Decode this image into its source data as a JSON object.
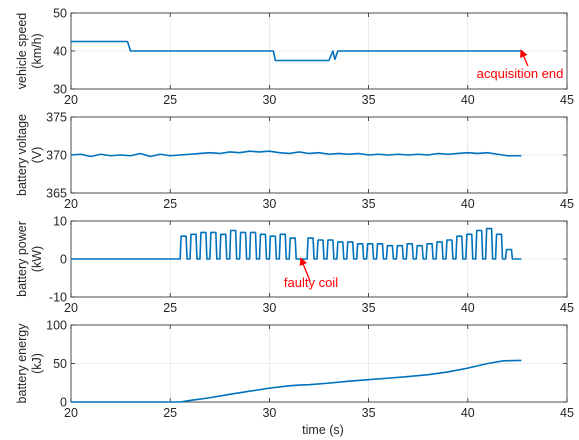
{
  "colors": {
    "series": "#0072bd",
    "annotation": "#ff0000",
    "axis": "#262626",
    "grid": "#dcdcdc"
  },
  "xlabel": "time (s)",
  "chart_data": [
    {
      "type": "line",
      "id": "speed",
      "ylabel": [
        "vehicle speed",
        "(km/h)"
      ],
      "xlim": [
        20,
        45
      ],
      "ylim": [
        30,
        50
      ],
      "xticks": [
        20,
        25,
        30,
        35,
        40,
        45
      ],
      "yticks": [
        30,
        40,
        50
      ],
      "grid": true,
      "series": [
        {
          "values": [
            [
              20.0,
              42.5
            ],
            [
              22.85,
              42.5
            ],
            [
              23.0,
              40.0
            ],
            [
              30.2,
              40.0
            ],
            [
              30.3,
              37.5
            ],
            [
              33.0,
              37.5
            ],
            [
              33.2,
              40.0
            ],
            [
              33.3,
              37.8
            ],
            [
              33.45,
              40.0
            ],
            [
              42.7,
              40.0
            ]
          ]
        }
      ],
      "annotations": [
        {
          "text": "acquisition end",
          "target": [
            42.7,
            40.0
          ]
        }
      ]
    },
    {
      "type": "line",
      "id": "voltage",
      "ylabel": [
        "battery voltage",
        "(V)"
      ],
      "xlim": [
        20,
        45
      ],
      "ylim": [
        365,
        375
      ],
      "xticks": [
        20,
        25,
        30,
        35,
        40,
        45
      ],
      "yticks": [
        365,
        370,
        375
      ],
      "grid": true,
      "series": [
        {
          "values": [
            [
              20.0,
              370.0
            ],
            [
              20.5,
              370.1
            ],
            [
              21.0,
              369.8
            ],
            [
              21.5,
              370.1
            ],
            [
              22.0,
              369.9
            ],
            [
              22.5,
              370.0
            ],
            [
              23.0,
              369.9
            ],
            [
              23.5,
              370.2
            ],
            [
              24.0,
              369.8
            ],
            [
              24.5,
              370.1
            ],
            [
              25.0,
              369.9
            ],
            [
              25.5,
              370.0
            ],
            [
              26.0,
              370.1
            ],
            [
              26.5,
              370.2
            ],
            [
              27.0,
              370.3
            ],
            [
              27.5,
              370.2
            ],
            [
              28.0,
              370.4
            ],
            [
              28.5,
              370.3
            ],
            [
              29.0,
              370.5
            ],
            [
              29.5,
              370.4
            ],
            [
              30.0,
              370.5
            ],
            [
              30.5,
              370.3
            ],
            [
              31.0,
              370.2
            ],
            [
              31.5,
              370.4
            ],
            [
              32.0,
              370.2
            ],
            [
              32.5,
              370.3
            ],
            [
              33.0,
              370.1
            ],
            [
              33.5,
              370.2
            ],
            [
              34.0,
              370.1
            ],
            [
              34.5,
              370.2
            ],
            [
              35.0,
              370.0
            ],
            [
              35.5,
              370.1
            ],
            [
              36.0,
              370.0
            ],
            [
              36.5,
              370.1
            ],
            [
              37.0,
              370.0
            ],
            [
              37.5,
              370.1
            ],
            [
              38.0,
              370.0
            ],
            [
              38.5,
              370.2
            ],
            [
              39.0,
              370.1
            ],
            [
              39.5,
              370.2
            ],
            [
              40.0,
              370.3
            ],
            [
              40.5,
              370.2
            ],
            [
              41.0,
              370.3
            ],
            [
              41.5,
              370.1
            ],
            [
              42.0,
              369.9
            ],
            [
              42.7,
              369.9
            ]
          ]
        }
      ]
    },
    {
      "type": "line",
      "id": "power",
      "ylabel": [
        "battery power",
        "(kW)"
      ],
      "xlim": [
        20,
        45
      ],
      "ylim": [
        -10,
        10
      ],
      "xticks": [
        20,
        25,
        30,
        35,
        40,
        45
      ],
      "yticks": [
        -10,
        0,
        10
      ],
      "grid": true,
      "series": [
        {
          "values": [
            [
              20.0,
              0.0
            ],
            [
              25.5,
              0.0
            ],
            [
              25.55,
              6.0
            ],
            [
              25.8,
              6.0
            ],
            [
              25.85,
              0.0
            ],
            [
              26.0,
              0.0
            ],
            [
              26.05,
              6.5
            ],
            [
              26.3,
              6.5
            ],
            [
              26.35,
              0.0
            ],
            [
              26.5,
              0.0
            ],
            [
              26.55,
              7.0
            ],
            [
              26.8,
              7.0
            ],
            [
              26.85,
              0.0
            ],
            [
              27.0,
              0.0
            ],
            [
              27.05,
              7.0
            ],
            [
              27.3,
              7.0
            ],
            [
              27.35,
              0.0
            ],
            [
              27.5,
              0.0
            ],
            [
              27.55,
              6.5
            ],
            [
              27.8,
              6.5
            ],
            [
              27.85,
              0.0
            ],
            [
              28.0,
              0.0
            ],
            [
              28.05,
              7.5
            ],
            [
              28.3,
              7.5
            ],
            [
              28.35,
              0.0
            ],
            [
              28.5,
              0.0
            ],
            [
              28.55,
              7.0
            ],
            [
              28.8,
              7.0
            ],
            [
              28.85,
              0.0
            ],
            [
              29.0,
              0.0
            ],
            [
              29.05,
              7.0
            ],
            [
              29.3,
              7.0
            ],
            [
              29.35,
              0.0
            ],
            [
              29.5,
              0.0
            ],
            [
              29.55,
              6.5
            ],
            [
              29.8,
              6.5
            ],
            [
              29.85,
              0.0
            ],
            [
              30.0,
              0.0
            ],
            [
              30.05,
              6.0
            ],
            [
              30.3,
              6.0
            ],
            [
              30.35,
              0.0
            ],
            [
              30.5,
              0.0
            ],
            [
              30.55,
              6.5
            ],
            [
              30.8,
              6.5
            ],
            [
              30.85,
              0.0
            ],
            [
              31.0,
              0.0
            ],
            [
              31.05,
              5.5
            ],
            [
              31.3,
              5.5
            ],
            [
              31.35,
              0.0
            ],
            [
              31.9,
              0.0
            ],
            [
              31.95,
              5.5
            ],
            [
              32.2,
              5.5
            ],
            [
              32.25,
              0.0
            ],
            [
              32.4,
              0.0
            ],
            [
              32.45,
              5.0
            ],
            [
              32.7,
              5.0
            ],
            [
              32.75,
              0.0
            ],
            [
              32.9,
              0.0
            ],
            [
              32.95,
              5.0
            ],
            [
              33.2,
              5.0
            ],
            [
              33.25,
              0.0
            ],
            [
              33.4,
              0.0
            ],
            [
              33.45,
              4.5
            ],
            [
              33.7,
              4.5
            ],
            [
              33.75,
              0.0
            ],
            [
              33.9,
              0.0
            ],
            [
              33.95,
              4.5
            ],
            [
              34.2,
              4.5
            ],
            [
              34.25,
              0.0
            ],
            [
              34.4,
              0.0
            ],
            [
              34.45,
              4.0
            ],
            [
              34.7,
              4.0
            ],
            [
              34.75,
              0.0
            ],
            [
              34.9,
              0.0
            ],
            [
              34.95,
              4.0
            ],
            [
              35.2,
              4.0
            ],
            [
              35.25,
              0.0
            ],
            [
              35.4,
              0.0
            ],
            [
              35.45,
              4.0
            ],
            [
              35.7,
              4.0
            ],
            [
              35.75,
              0.0
            ],
            [
              35.9,
              0.0
            ],
            [
              35.95,
              3.5
            ],
            [
              36.2,
              3.5
            ],
            [
              36.25,
              0.0
            ],
            [
              36.4,
              0.0
            ],
            [
              36.45,
              3.5
            ],
            [
              36.7,
              3.5
            ],
            [
              36.75,
              0.0
            ],
            [
              36.9,
              0.0
            ],
            [
              36.95,
              4.0
            ],
            [
              37.2,
              4.0
            ],
            [
              37.25,
              0.0
            ],
            [
              37.4,
              0.0
            ],
            [
              37.45,
              3.5
            ],
            [
              37.7,
              3.5
            ],
            [
              37.75,
              0.0
            ],
            [
              37.9,
              0.0
            ],
            [
              37.95,
              4.0
            ],
            [
              38.2,
              4.0
            ],
            [
              38.25,
              0.0
            ],
            [
              38.4,
              0.0
            ],
            [
              38.45,
              4.5
            ],
            [
              38.7,
              4.5
            ],
            [
              38.75,
              0.0
            ],
            [
              38.9,
              0.0
            ],
            [
              38.95,
              5.0
            ],
            [
              39.2,
              5.0
            ],
            [
              39.25,
              0.0
            ],
            [
              39.4,
              0.0
            ],
            [
              39.45,
              6.0
            ],
            [
              39.7,
              6.0
            ],
            [
              39.75,
              0.0
            ],
            [
              39.9,
              0.0
            ],
            [
              39.95,
              6.5
            ],
            [
              40.2,
              6.5
            ],
            [
              40.25,
              0.0
            ],
            [
              40.4,
              0.0
            ],
            [
              40.45,
              7.5
            ],
            [
              40.7,
              7.5
            ],
            [
              40.75,
              0.0
            ],
            [
              40.9,
              0.0
            ],
            [
              40.95,
              8.0
            ],
            [
              41.2,
              8.0
            ],
            [
              41.25,
              0.0
            ],
            [
              41.4,
              0.0
            ],
            [
              41.45,
              6.5
            ],
            [
              41.7,
              6.5
            ],
            [
              41.75,
              0.0
            ],
            [
              41.9,
              0.0
            ],
            [
              41.95,
              2.5
            ],
            [
              42.2,
              2.5
            ],
            [
              42.25,
              0.0
            ],
            [
              42.7,
              0.0
            ]
          ]
        }
      ],
      "annotations": [
        {
          "text": "faulty coil",
          "target": [
            31.6,
            0.0
          ]
        }
      ]
    },
    {
      "type": "line",
      "id": "energy",
      "ylabel": [
        "battery energy",
        "(kJ)"
      ],
      "xlim": [
        20,
        45
      ],
      "ylim": [
        0,
        100
      ],
      "xticks": [
        20,
        25,
        30,
        35,
        40,
        45
      ],
      "yticks": [
        0,
        50,
        100
      ],
      "grid": true,
      "series": [
        {
          "values": [
            [
              20.0,
              0.0
            ],
            [
              25.5,
              0.0
            ],
            [
              26.0,
              2.0
            ],
            [
              27.0,
              5.5
            ],
            [
              28.0,
              10.0
            ],
            [
              29.0,
              14.0
            ],
            [
              30.0,
              18.0
            ],
            [
              31.0,
              21.0
            ],
            [
              31.5,
              22.0
            ],
            [
              32.0,
              22.5
            ],
            [
              33.0,
              24.5
            ],
            [
              34.0,
              27.0
            ],
            [
              35.0,
              29.0
            ],
            [
              36.0,
              31.0
            ],
            [
              37.0,
              33.0
            ],
            [
              38.0,
              35.5
            ],
            [
              39.0,
              39.0
            ],
            [
              40.0,
              44.0
            ],
            [
              41.0,
              50.0
            ],
            [
              41.8,
              53.5
            ],
            [
              42.7,
              54.0
            ]
          ]
        }
      ]
    }
  ]
}
